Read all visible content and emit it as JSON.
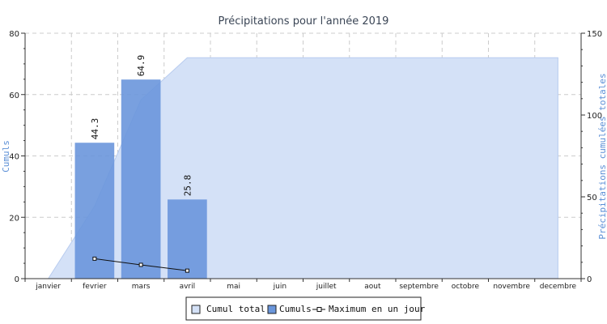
{
  "chart_data": {
    "type": "bar",
    "title": "Précipitations pour l'année 2019",
    "ylabel": "Cumuls",
    "y2label": "Précipitations cumulées totales",
    "ylim": [
      0,
      80
    ],
    "y2lim": [
      0,
      150
    ],
    "yticks": [
      0,
      20,
      40,
      60,
      80
    ],
    "y2ticks": [
      0,
      50,
      100,
      150
    ],
    "categories": [
      "janvier",
      "fevrier",
      "mars",
      "avril",
      "mai",
      "juin",
      "juillet",
      "aout",
      "septembre",
      "octobre",
      "novembre",
      "decembre"
    ],
    "grid": true,
    "legend_position": "bottom",
    "series": [
      {
        "name": "Cumul total",
        "type": "area",
        "axis": "right",
        "color": "#d4e1f7",
        "values": [
          0,
          44.3,
          109.2,
          135.0,
          135.0,
          135.0,
          135.0,
          135.0,
          135.0,
          135.0,
          135.0,
          135.0
        ]
      },
      {
        "name": "Cumuls",
        "type": "bar",
        "axis": "left",
        "color": "#6a96db",
        "values": [
          0,
          44.3,
          64.9,
          25.8,
          null,
          null,
          null,
          null,
          null,
          null,
          null,
          null
        ],
        "labels": [
          "44.3",
          "64.9",
          "25.8"
        ]
      },
      {
        "name": "Maximum en un jour",
        "type": "line",
        "axis": "left",
        "color": "#111111",
        "values": [
          null,
          6.5,
          4.5,
          2.6,
          null,
          null,
          null,
          null,
          null,
          null,
          null,
          null
        ]
      }
    ]
  }
}
